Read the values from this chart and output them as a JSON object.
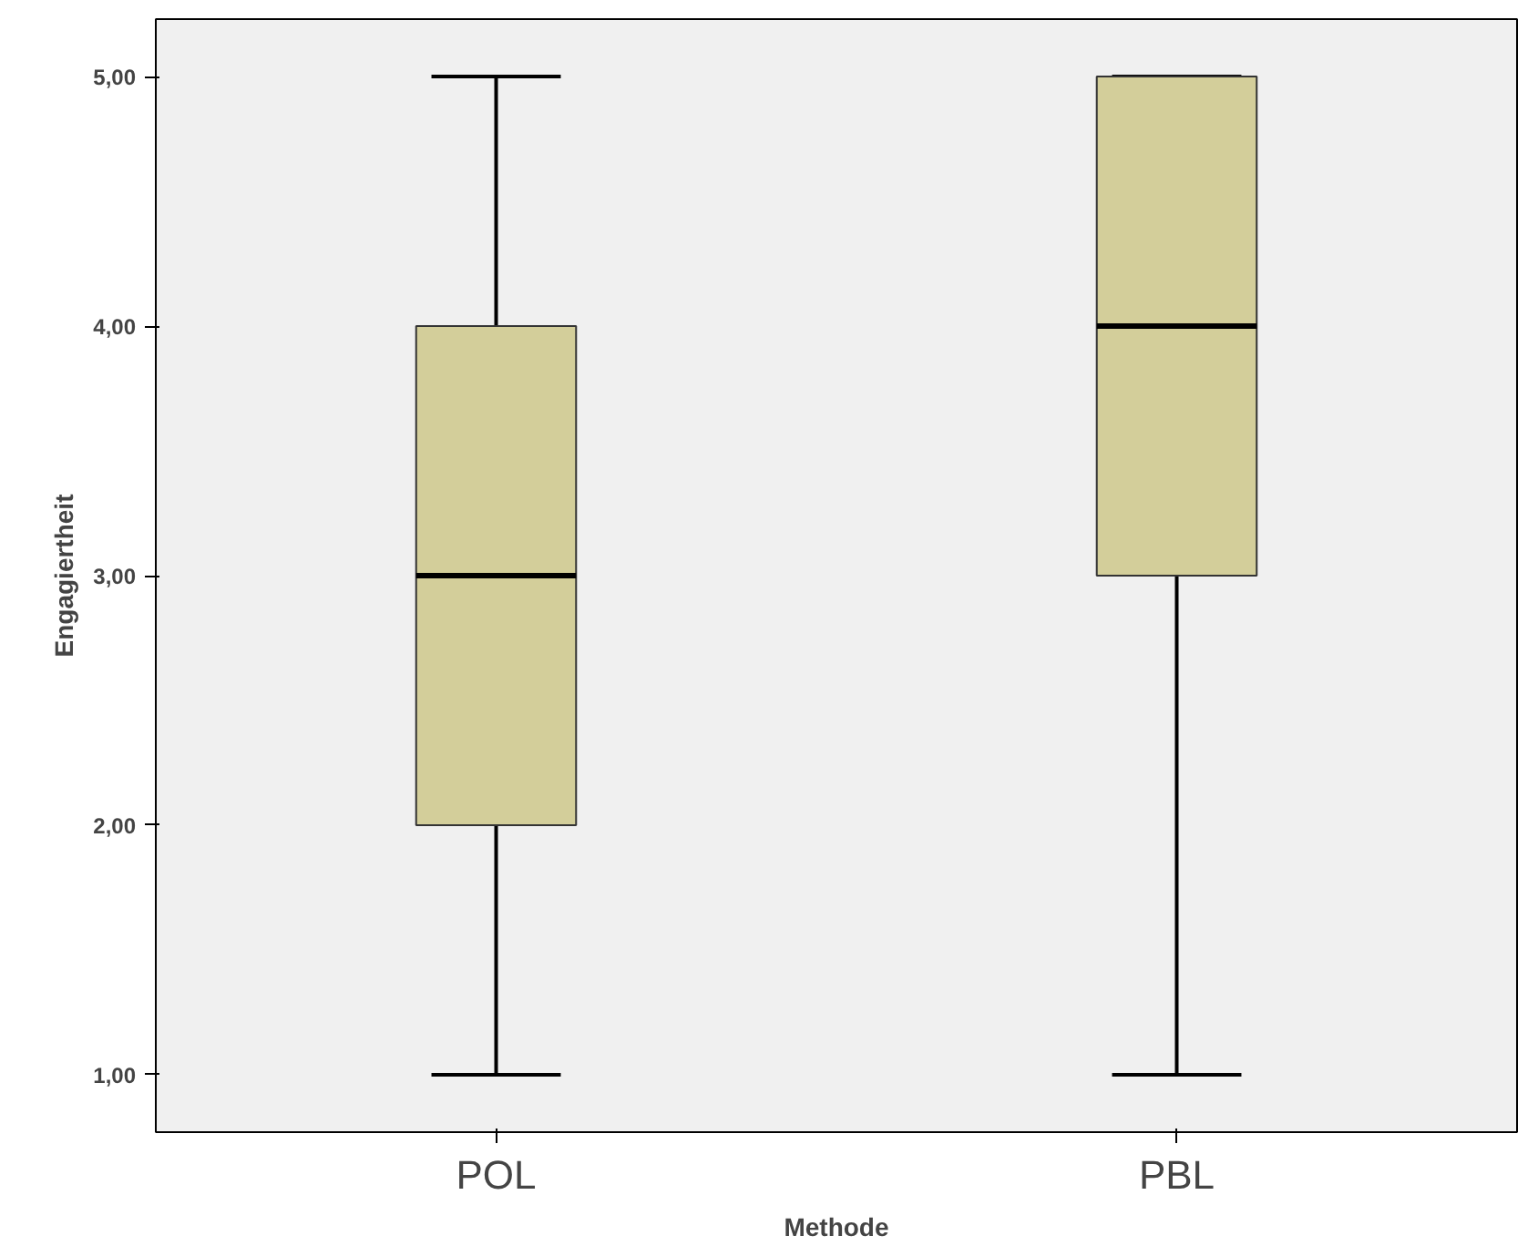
{
  "chart_data": {
    "type": "box",
    "xlabel": "Methode",
    "ylabel": "Engagiertheit",
    "categories": [
      "POL",
      "PBL"
    ],
    "color": "#d3ce9a",
    "boxes": [
      {
        "low": 1,
        "q1": 2,
        "median": 3,
        "q3": 4,
        "high": 5
      },
      {
        "low": 1,
        "q1": 3,
        "median": 4,
        "q3": 5,
        "high": 5
      }
    ],
    "ylim": [
      0.77,
      5.23
    ],
    "yticks": [
      {
        "value": 1,
        "label": "1,00"
      },
      {
        "value": 2,
        "label": "2,00"
      },
      {
        "value": 3,
        "label": "3,00"
      },
      {
        "value": 4,
        "label": "4,00"
      },
      {
        "value": 5,
        "label": "5,00"
      }
    ],
    "grid": false
  }
}
